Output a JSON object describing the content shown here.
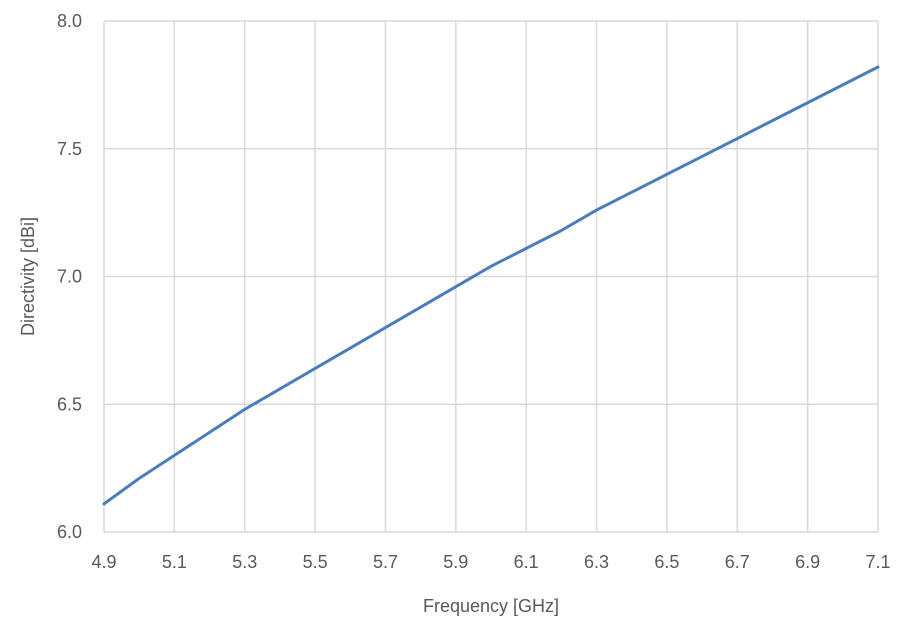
{
  "chart_data": {
    "type": "line",
    "title": "",
    "xlabel": "Frequency [GHz]",
    "ylabel": "Directivity [dBi]",
    "xlim": [
      4.9,
      7.1
    ],
    "ylim": [
      6.0,
      8.0
    ],
    "x_ticks": [
      "4.9",
      "5.1",
      "5.3",
      "5.5",
      "5.7",
      "5.9",
      "6.1",
      "6.3",
      "6.5",
      "6.7",
      "6.9",
      "7.1"
    ],
    "y_ticks": [
      "6.0",
      "6.5",
      "7.0",
      "7.5",
      "8.0"
    ],
    "grid": true,
    "legend": "none",
    "series": [
      {
        "color": "#4a7ebb",
        "x": [
          4.9,
          5.0,
          5.1,
          5.2,
          5.3,
          5.4,
          5.5,
          5.6,
          5.7,
          5.8,
          5.9,
          6.0,
          6.1,
          6.2,
          6.3,
          6.4,
          6.5,
          6.6,
          6.7,
          6.8,
          6.9,
          7.0,
          7.1
        ],
        "y": [
          6.11,
          6.21,
          6.3,
          6.39,
          6.48,
          6.56,
          6.64,
          6.72,
          6.8,
          6.88,
          6.96,
          7.04,
          7.11,
          7.18,
          7.26,
          7.33,
          7.4,
          7.47,
          7.54,
          7.61,
          7.68,
          7.75,
          7.82
        ]
      }
    ]
  }
}
